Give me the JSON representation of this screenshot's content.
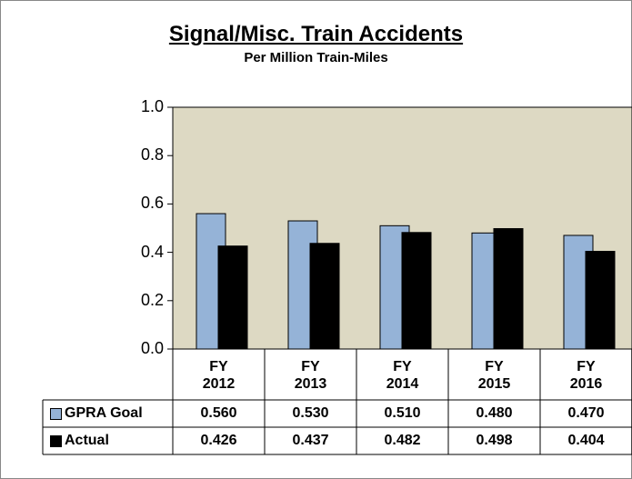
{
  "chart_data": {
    "type": "bar",
    "title": "Signal/Misc. Train Accidents",
    "subtitle": "Per Million Train-Miles",
    "categories": [
      "FY 2012",
      "FY 2013",
      "FY 2014",
      "FY 2015",
      "FY 2016"
    ],
    "series": [
      {
        "name": "GPRA Goal",
        "color": "#95b3d7",
        "values": [
          0.56,
          0.53,
          0.51,
          0.48,
          0.47
        ],
        "value_labels": [
          "0.560",
          "0.530",
          "0.510",
          "0.480",
          "0.470"
        ]
      },
      {
        "name": "Actual",
        "color": "#000000",
        "values": [
          0.426,
          0.437,
          0.482,
          0.498,
          0.404
        ],
        "value_labels": [
          "0.426",
          "0.437",
          "0.482",
          "0.498",
          "0.404"
        ]
      }
    ],
    "ylim": [
      0,
      1
    ],
    "yticks": [
      {
        "value": 0,
        "label": "0.0"
      },
      {
        "value": 0.2,
        "label": "0.2"
      },
      {
        "value": 0.4,
        "label": "0.4"
      },
      {
        "value": 0.6,
        "label": "0.6"
      },
      {
        "value": 0.8,
        "label": "0.8"
      },
      {
        "value": 1,
        "label": "1.0"
      }
    ],
    "plot_background": "#ddd9c3"
  }
}
